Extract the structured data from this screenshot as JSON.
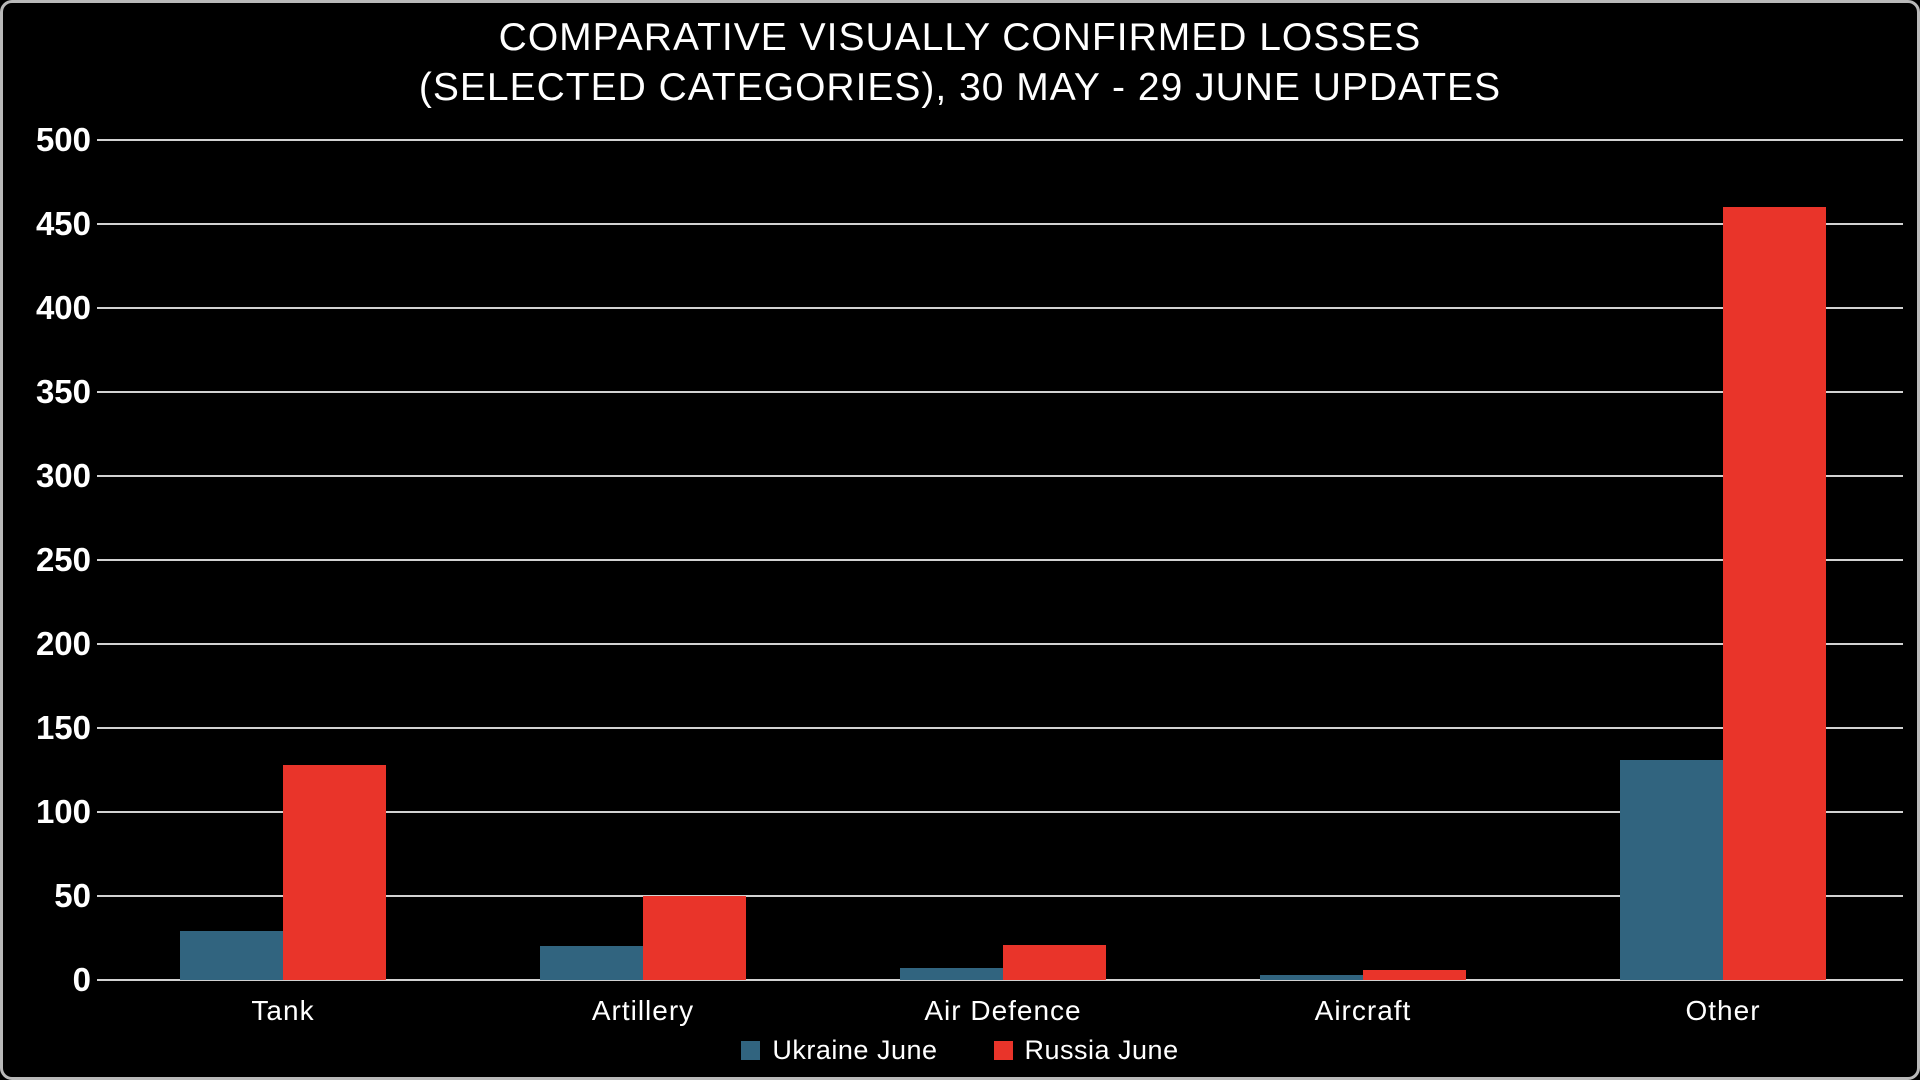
{
  "title": {
    "line1": "COMPARATIVE VISUALLY CONFIRMED LOSSES",
    "line2": "(SELECTED CATEGORIES), 30 MAY - 29 JUNE UPDATES"
  },
  "chart_data": {
    "type": "bar",
    "title": "COMPARATIVE VISUALLY CONFIRMED LOSSES (SELECTED CATEGORIES), 30 MAY - 29 JUNE UPDATES",
    "categories": [
      "Tank",
      "Artillery",
      "Air Defence",
      "Aircraft",
      "Other"
    ],
    "series": [
      {
        "name": "Ukraine June",
        "color": "#31647f",
        "values": [
          29,
          20,
          7,
          3,
          131
        ]
      },
      {
        "name": "Russia June",
        "color": "#e9342a",
        "values": [
          128,
          50,
          21,
          6,
          460
        ]
      }
    ],
    "xlabel": "",
    "ylabel": "",
    "ylim": [
      0,
      500
    ],
    "ytick_step": 50,
    "yticks": [
      0,
      50,
      100,
      150,
      200,
      250,
      300,
      350,
      400,
      450,
      500
    ],
    "grid": true,
    "legend_position": "bottom"
  },
  "colors": {
    "background": "#000000",
    "text": "#ffffff",
    "gridline": "#d2d2d2",
    "frame_border": "#b9b9b9"
  }
}
